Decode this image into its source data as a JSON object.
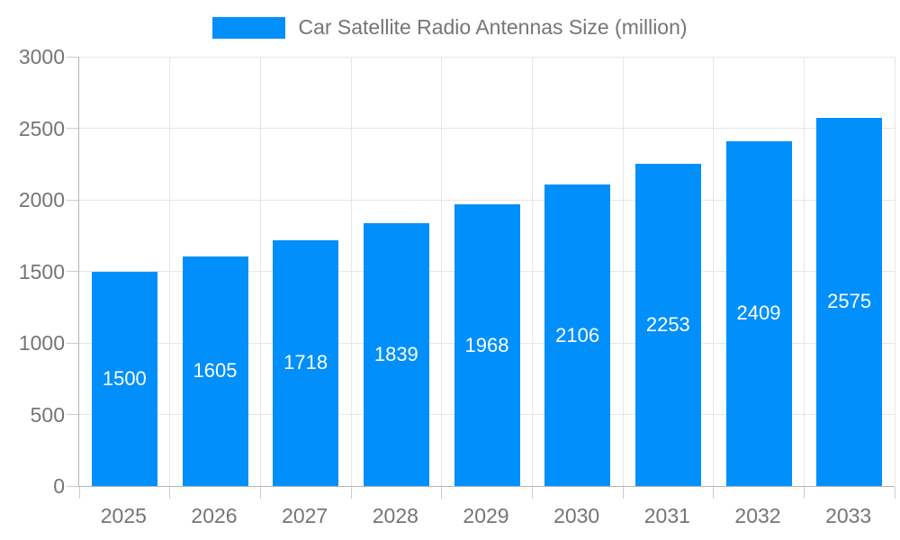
{
  "chart_data": {
    "type": "bar",
    "title": "Car Satellite Radio Antennas Size (million)",
    "categories": [
      "2025",
      "2026",
      "2027",
      "2028",
      "2029",
      "2030",
      "2031",
      "2032",
      "2033"
    ],
    "values": [
      1500,
      1605,
      1718,
      1839,
      1968,
      2106,
      2253,
      2409,
      2575
    ],
    "xlabel": "",
    "ylabel": "",
    "ylim": [
      0,
      3000
    ],
    "yticks": [
      0,
      500,
      1000,
      1500,
      2000,
      2500,
      3000
    ],
    "grid": true,
    "legend_position": "top",
    "value_labels": "centered-inside-bars-white",
    "colors": {
      "bar": "#008FFB",
      "value_label": "#ffffff",
      "axis_line": "#b3b3b3",
      "gridline": "#e6e6e6",
      "tick_mark": "#cccccc",
      "tick_label": "#757575",
      "legend_text": "#757575",
      "background": "#ffffff"
    }
  }
}
